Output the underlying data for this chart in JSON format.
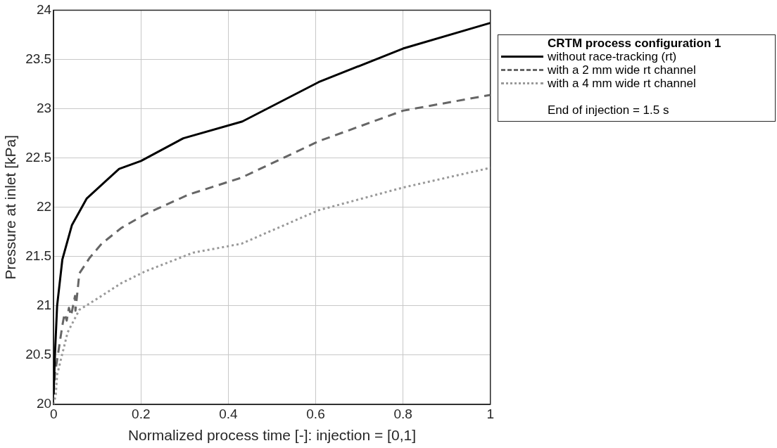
{
  "chart_data": {
    "type": "line",
    "xlabel": "Normalized process time [-]: injection = [0,1]",
    "ylabel": "Pressure at inlet [kPa]",
    "legend_title": "CRTM process configuration 1",
    "annotations": [
      "End of injection = 1.5 s"
    ],
    "xlim": [
      0,
      1
    ],
    "ylim": [
      20,
      24
    ],
    "xticks": [
      0,
      0.2,
      0.4,
      0.6,
      0.8,
      1
    ],
    "yticks": [
      20,
      20.5,
      21,
      21.5,
      22,
      22.5,
      23,
      23.5,
      24
    ],
    "grid": true,
    "legend": "right",
    "series": [
      {
        "name": "without race-tracking (rt)",
        "color": "#000000",
        "line_style": "solid",
        "x": [
          0,
          0.003,
          0.008,
          0.02,
          0.042,
          0.076,
          0.15,
          0.2,
          0.297,
          0.432,
          0.607,
          0.8,
          1
        ],
        "values": [
          20.1,
          20.5,
          21.0,
          21.47,
          21.82,
          22.09,
          22.39,
          22.47,
          22.7,
          22.87,
          23.27,
          23.61,
          23.87
        ]
      },
      {
        "name": "with a 2 mm wide rt channel",
        "color": "#666666",
        "line_style": "dashed",
        "x": [
          0,
          0.003,
          0.008,
          0.02,
          0.025,
          0.03,
          0.035,
          0.04,
          0.049,
          0.05,
          0.059,
          0.083,
          0.11,
          0.155,
          0.21,
          0.31,
          0.43,
          0.607,
          0.8,
          1
        ],
        "values": [
          20.1,
          20.31,
          20.45,
          20.8,
          20.92,
          20.85,
          20.98,
          20.9,
          21.1,
          20.95,
          21.33,
          21.49,
          21.63,
          21.79,
          21.93,
          22.13,
          22.3,
          22.67,
          22.98,
          23.14
        ]
      },
      {
        "name": "with a 4 mm wide rt channel",
        "color": "#999999",
        "line_style": "dotted",
        "x": [
          0,
          0.005,
          0.008,
          0.032,
          0.059,
          0.099,
          0.155,
          0.21,
          0.32,
          0.43,
          0.607,
          0.8,
          1
        ],
        "values": [
          20.0,
          20.1,
          20.3,
          20.73,
          20.96,
          21.07,
          21.23,
          21.35,
          21.54,
          21.63,
          21.97,
          22.2,
          22.4
        ]
      }
    ]
  }
}
